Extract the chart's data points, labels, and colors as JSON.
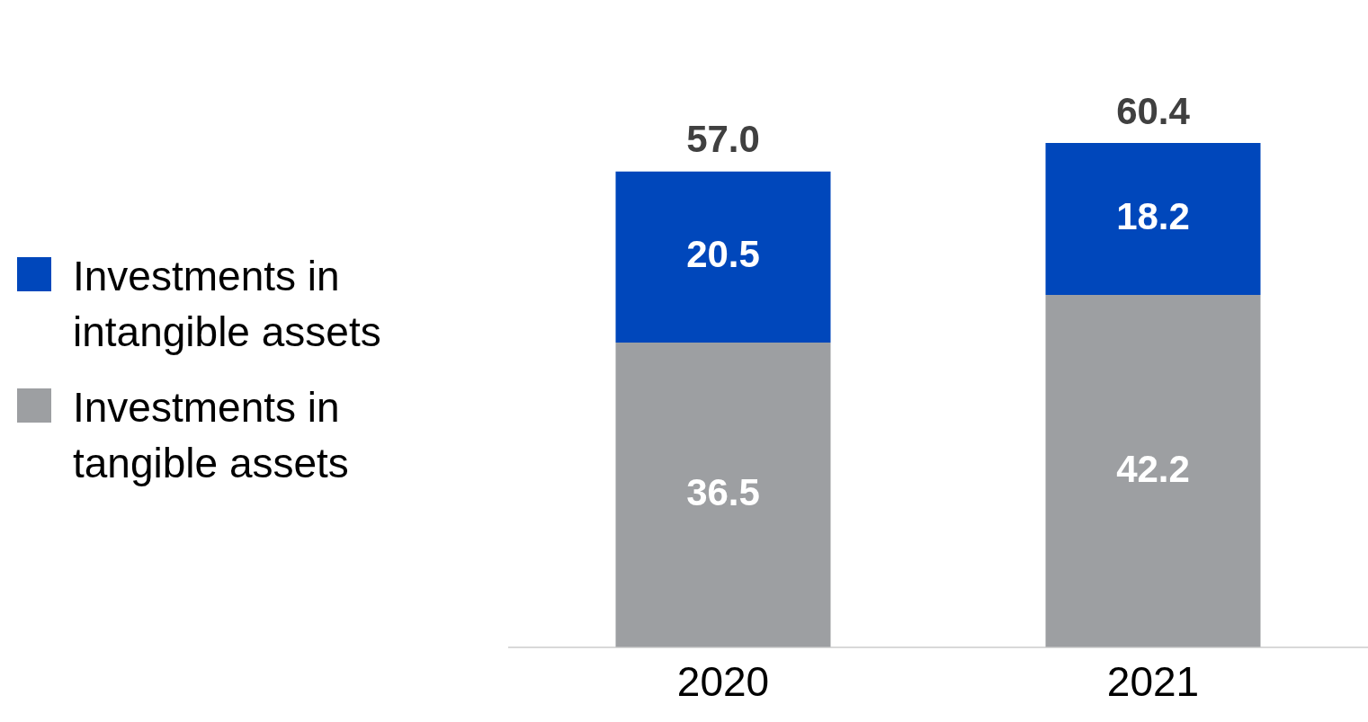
{
  "chart_data": {
    "type": "bar",
    "stacked": true,
    "categories": [
      "2020",
      "2021"
    ],
    "series": [
      {
        "name": "Investments in tangible assets",
        "color": "#9d9fa2",
        "values": [
          36.5,
          42.2
        ]
      },
      {
        "name": "Investments in intangible assets",
        "color": "#0047bb",
        "values": [
          20.5,
          18.2
        ]
      }
    ],
    "data_labels": true,
    "totals": [
      "57.0",
      "60.4"
    ],
    "legend": "left",
    "grid": false
  }
}
